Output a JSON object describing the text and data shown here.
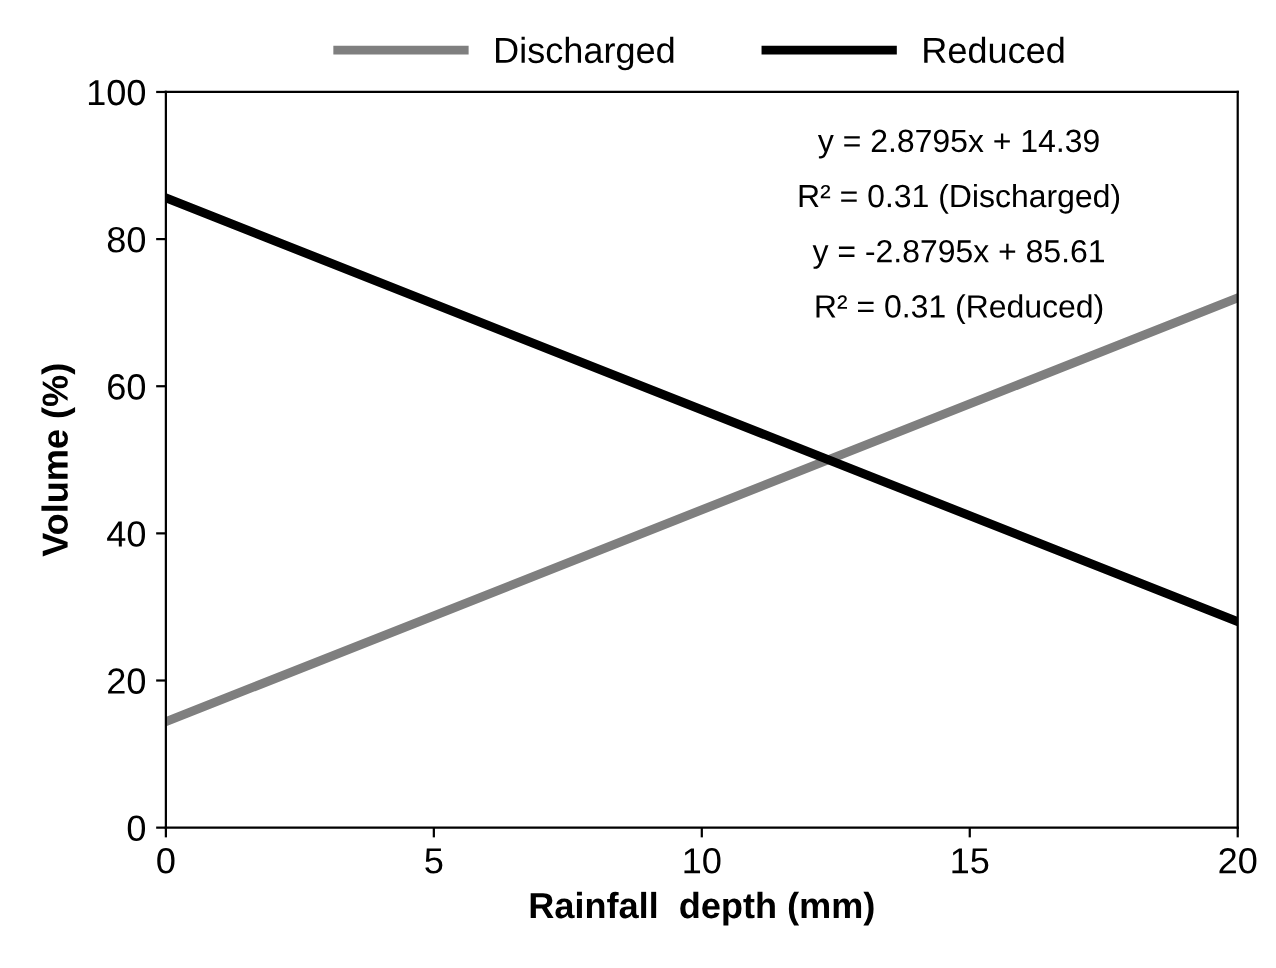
{
  "chart_data": {
    "type": "line",
    "xlabel": "Rainfall  depth (mm)",
    "ylabel": "Volume (%)",
    "series": [
      {
        "name": "Discharged",
        "color": "#7f7f7f",
        "values": [
          14.4,
          72
        ]
      },
      {
        "name": "Reduced",
        "color": "#000000",
        "values": [
          85.6,
          28
        ]
      }
    ],
    "x": [
      0,
      20
    ],
    "xlim": [
      0,
      20
    ],
    "ylim": [
      0,
      100
    ],
    "xticks": [
      0,
      5,
      10,
      15,
      20
    ],
    "yticks": [
      0,
      20,
      40,
      60,
      80,
      100
    ],
    "annotations": [
      "y = 2.8795x + 14.39",
      "R² = 0.31 (Discharged)",
      "y = -2.8795x + 85.61",
      "R² = 0.31 (Reduced)"
    ],
    "legend": "top",
    "grid": false,
    "marker": "none",
    "line_style": "solid"
  }
}
